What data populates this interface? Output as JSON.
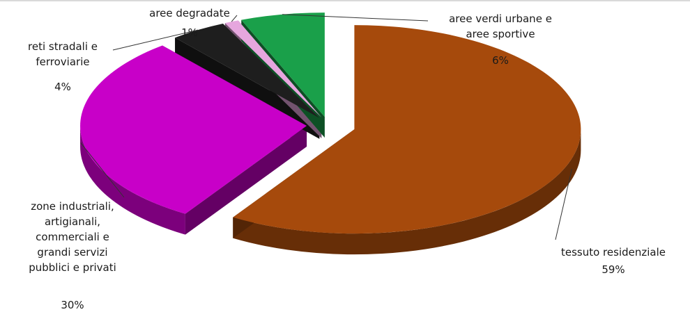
{
  "chart_data": {
    "type": "pie",
    "style": "3d-exploded",
    "title": "",
    "legend": "none",
    "slices": [
      {
        "label": "tessuto residenziale",
        "value": 59,
        "value_label": "59%",
        "color": "#a64a0c"
      },
      {
        "label": "zone industriali, artigianali, commerciali e grandi servizi pubblici e privati",
        "value": 30,
        "value_label": "30%",
        "color": "#c800c8"
      },
      {
        "label": "reti stradali e ferroviarie",
        "value": 4,
        "value_label": "4%",
        "color": "#1e1e1e"
      },
      {
        "label": "aree degradate",
        "value": 1,
        "value_label": "1%",
        "color": "#e6a6de"
      },
      {
        "label": "aree verdi urbane e aree sportive",
        "value": 6,
        "value_label": "6%",
        "color": "#1aa04a"
      }
    ]
  }
}
